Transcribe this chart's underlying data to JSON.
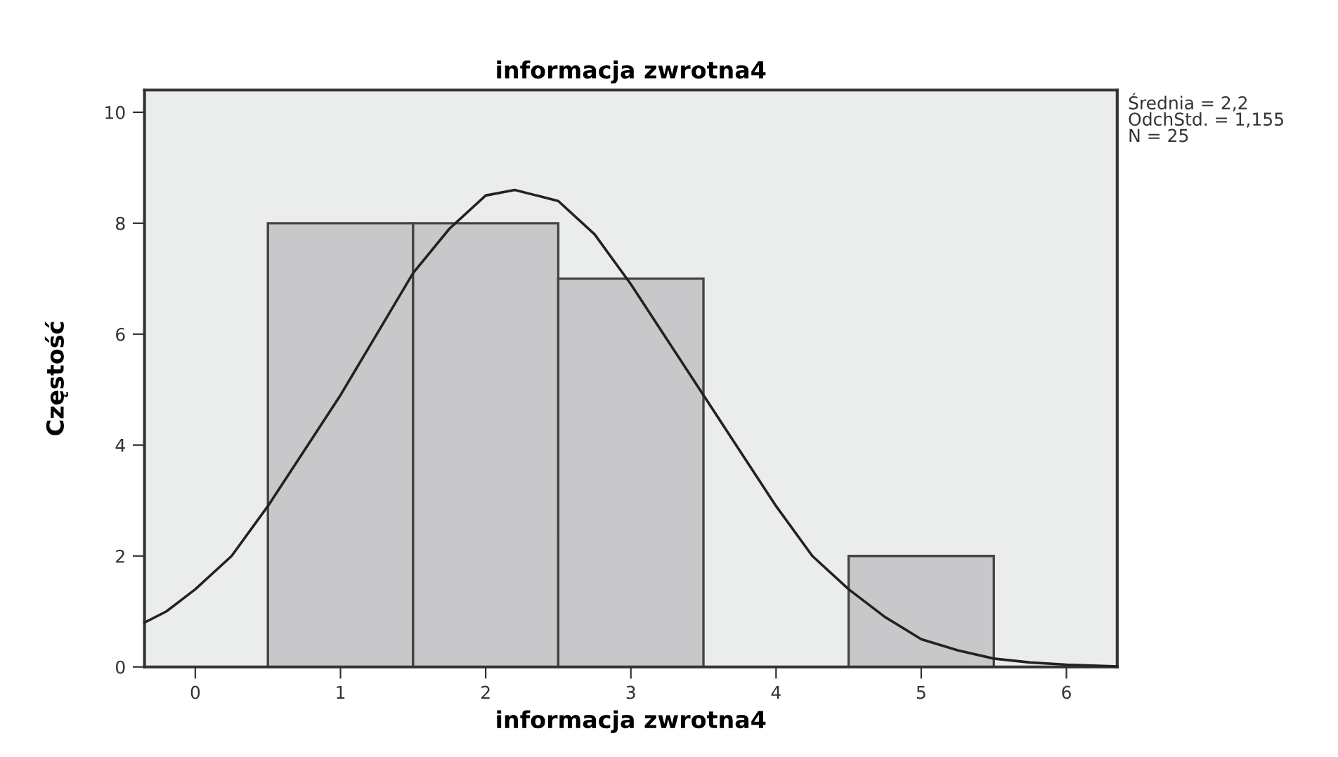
{
  "chart_data": {
    "type": "histogram",
    "title": "informacja zwrotna4",
    "xlabel": "informacja zwrotna4",
    "ylabel": "Częstość",
    "bins": [
      0.5,
      1.5,
      2.5,
      3.5,
      4.5,
      5.5
    ],
    "values": [
      8,
      8,
      7,
      0,
      2
    ],
    "color": "#c8c8ca",
    "series": [
      {
        "type": "line",
        "color": "#222222",
        "x": [
          -0.35,
          -0.2,
          0,
          0.25,
          0.5,
          0.75,
          1,
          1.25,
          1.5,
          1.75,
          2,
          2.2,
          2.5,
          2.75,
          3,
          3.25,
          3.5,
          3.75,
          4,
          4.25,
          4.5,
          4.75,
          5,
          5.25,
          5.5,
          5.75,
          6,
          6.35
        ],
        "values": [
          0.8,
          1.0,
          1.4,
          2.0,
          2.9,
          3.9,
          4.9,
          6.0,
          7.1,
          7.9,
          8.5,
          8.6,
          8.4,
          7.8,
          6.9,
          5.9,
          4.9,
          3.9,
          2.9,
          2.0,
          1.4,
          0.9,
          0.5,
          0.3,
          0.15,
          0.08,
          0.04,
          0.01
        ]
      }
    ],
    "annotations": [
      "Średnia = 2,2\nOdchStd. = 1,155\nN = 25"
    ],
    "xlim": [
      -0.35,
      6.35
    ],
    "xticks": [
      0,
      1,
      2,
      3,
      4,
      5,
      6
    ],
    "ylim": [
      0,
      10.4
    ],
    "yticks": [
      0,
      2,
      4,
      6,
      8,
      10
    ],
    "grid": false,
    "legend": false,
    "marker": "none",
    "line_style": "solid"
  }
}
